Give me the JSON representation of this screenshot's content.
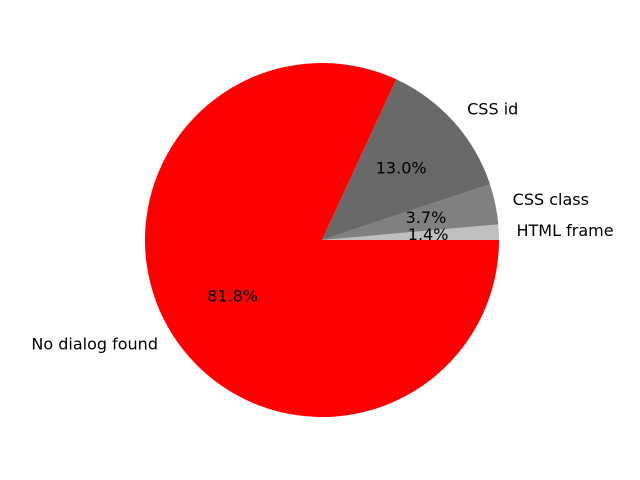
{
  "chart_data": {
    "type": "pie",
    "start_angle_deg": 0,
    "direction": "counterclockwise",
    "slices": [
      {
        "label": "HTML frame",
        "percent": 1.4,
        "percent_label": "1.4%",
        "color": "#bfbfbf"
      },
      {
        "label": "CSS class",
        "percent": 3.7,
        "percent_label": "3.7%",
        "color": "#808080"
      },
      {
        "label": "CSS id",
        "percent": 13.0,
        "percent_label": "13.0%",
        "color": "#696969"
      },
      {
        "label": "No dialog found",
        "percent": 81.8,
        "percent_label": "81.8%",
        "color": "#ff0000"
      }
    ]
  }
}
